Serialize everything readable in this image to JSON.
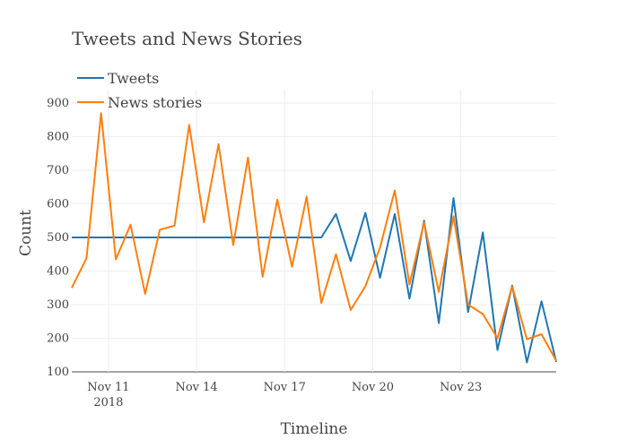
{
  "chart_data": {
    "type": "line",
    "title": "Tweets and News Stories",
    "xlabel": "Timeline",
    "ylabel": "Count",
    "ylim": [
      100,
      940
    ],
    "y_ticks": [
      100,
      200,
      300,
      400,
      500,
      600,
      700,
      800,
      900
    ],
    "x_ticks": [
      "2018-11-11",
      "2018-11-14",
      "2018-11-17",
      "2018-11-20",
      "2018-11-23"
    ],
    "x_tick_labels": [
      "Nov 11",
      "Nov 14",
      "Nov 17",
      "Nov 20",
      "Nov 23"
    ],
    "x_tick_sublabel": "2018",
    "xlim": [
      "2018-11-09 18:00",
      "2018-11-26 06:00"
    ],
    "grid": true,
    "legend_position": "top-left",
    "series": [
      {
        "name": "Tweets",
        "color": "#1f77b4",
        "x": [
          "2018-11-09 18:00",
          "2018-11-10 06:00",
          "2018-11-10 18:00",
          "2018-11-11 06:00",
          "2018-11-11 18:00",
          "2018-11-12 06:00",
          "2018-11-12 18:00",
          "2018-11-13 06:00",
          "2018-11-13 18:00",
          "2018-11-14 06:00",
          "2018-11-14 18:00",
          "2018-11-15 06:00",
          "2018-11-15 18:00",
          "2018-11-16 06:00",
          "2018-11-16 18:00",
          "2018-11-17 06:00",
          "2018-11-17 18:00",
          "2018-11-18 06:00",
          "2018-11-18 18:00",
          "2018-11-19 06:00",
          "2018-11-19 18:00",
          "2018-11-20 06:00",
          "2018-11-20 18:00",
          "2018-11-21 06:00",
          "2018-11-21 18:00",
          "2018-11-22 06:00",
          "2018-11-22 18:00",
          "2018-11-23 06:00",
          "2018-11-23 18:00",
          "2018-11-24 06:00",
          "2018-11-24 18:00",
          "2018-11-25 06:00",
          "2018-11-25 18:00",
          "2018-11-26 06:00"
        ],
        "values": [
          500,
          500,
          500,
          500,
          500,
          500,
          500,
          500,
          500,
          500,
          500,
          500,
          500,
          500,
          500,
          500,
          500,
          500,
          570,
          430,
          573,
          380,
          570,
          318,
          550,
          245,
          617,
          278,
          515,
          165,
          357,
          128,
          310,
          130
        ]
      },
      {
        "name": "News stories",
        "color": "#ff7f0e",
        "x": [
          "2018-11-09 18:00",
          "2018-11-10 06:00",
          "2018-11-10 18:00",
          "2018-11-11 06:00",
          "2018-11-11 18:00",
          "2018-11-12 06:00",
          "2018-11-12 18:00",
          "2018-11-13 06:00",
          "2018-11-13 18:00",
          "2018-11-14 06:00",
          "2018-11-14 18:00",
          "2018-11-15 06:00",
          "2018-11-15 18:00",
          "2018-11-16 06:00",
          "2018-11-16 18:00",
          "2018-11-17 06:00",
          "2018-11-17 18:00",
          "2018-11-18 06:00",
          "2018-11-18 18:00",
          "2018-11-19 06:00",
          "2018-11-19 18:00",
          "2018-11-20 06:00",
          "2018-11-20 18:00",
          "2018-11-21 06:00",
          "2018-11-21 18:00",
          "2018-11-22 06:00",
          "2018-11-22 18:00",
          "2018-11-23 06:00",
          "2018-11-23 18:00",
          "2018-11-24 06:00",
          "2018-11-24 18:00",
          "2018-11-25 06:00",
          "2018-11-25 18:00",
          "2018-11-26 06:00"
        ],
        "values": [
          350,
          438,
          870,
          435,
          538,
          332,
          523,
          535,
          835,
          545,
          778,
          477,
          738,
          383,
          612,
          413,
          622,
          305,
          450,
          284,
          355,
          470,
          640,
          360,
          545,
          338,
          563,
          300,
          272,
          200,
          355,
          197,
          212,
          133
        ]
      }
    ]
  }
}
